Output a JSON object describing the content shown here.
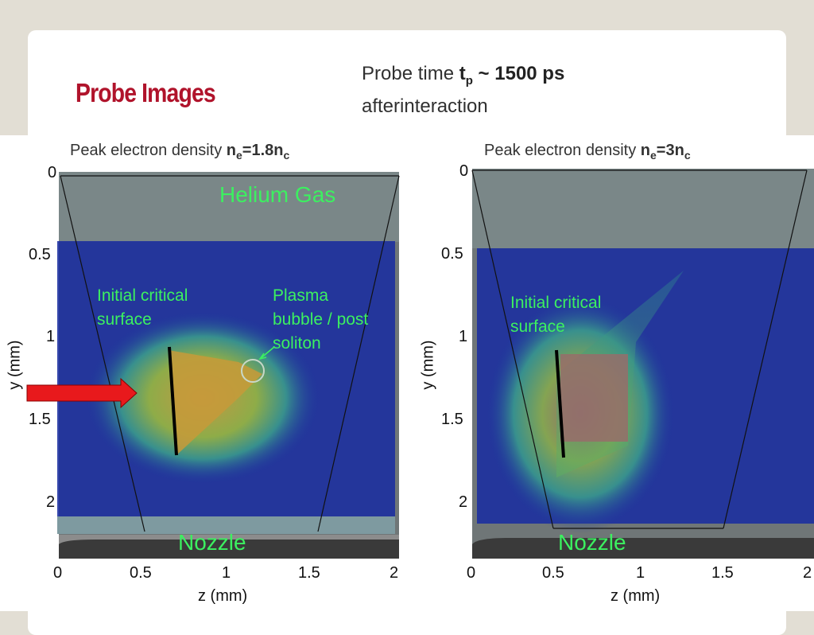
{
  "slide": {
    "title": "Probe Images",
    "probe_time_prefix": "Probe time ",
    "probe_time_symbol": "t",
    "probe_time_sub": "p",
    "probe_time_value": " ~ 1500 ps",
    "probe_time_line2": "afterinteraction"
  },
  "panels": [
    {
      "caption_prefix": "Peak electron density ",
      "caption_symbol": "n",
      "caption_sub1": "e",
      "caption_value": "=1.8n",
      "caption_sub2": "c",
      "label_gas": "Helium Gas",
      "label_critical": [
        "Initial critical",
        "surface"
      ],
      "label_bubble": [
        "Plasma",
        "bubble / post",
        "soliton"
      ],
      "label_nozzle": "Nozzle"
    },
    {
      "caption_prefix": "Peak electron density ",
      "caption_symbol": "n",
      "caption_sub1": "e",
      "caption_value": "=3n",
      "caption_sub2": "c",
      "label_critical": [
        "Initial critical",
        "surface"
      ],
      "label_nozzle": "Nozzle"
    }
  ],
  "axes": {
    "x_ticks": [
      "0",
      "0.5",
      "1",
      "1.5",
      "2"
    ],
    "y_ticks": [
      "0",
      "0.5",
      "1",
      "1.5",
      "2"
    ],
    "xlabel": "z (mm)",
    "ylabel": "y (mm)"
  },
  "colors": {
    "title": "#b0132b",
    "annotation": "#3cf060",
    "laser_arrow": "#e8191c",
    "overlay_blue": "#1a2ea0"
  }
}
